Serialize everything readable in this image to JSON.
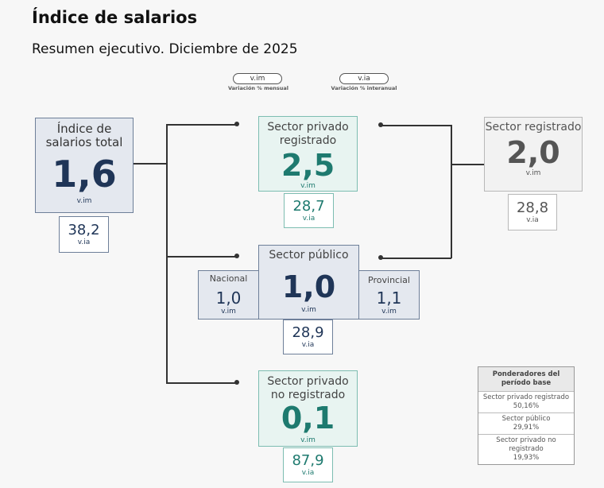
{
  "title": "Índice de salarios",
  "subtitle": "Resumen ejecutivo. Diciembre de 2025",
  "legend": {
    "vim_label": "v.im",
    "vim_caption": "Variación % mensual",
    "via_label": "v.ia",
    "via_caption": "Variación % interanual"
  },
  "total": {
    "label": "Índice de salarios total",
    "vim": "1,6",
    "vim_label": "v.im",
    "via": "38,2",
    "via_label": "v.ia"
  },
  "privado_registrado": {
    "label": "Sector privado registrado",
    "vim": "2,5",
    "vim_label": "v.im",
    "via": "28,7",
    "via_label": "v.ia"
  },
  "registrado": {
    "label": "Sector registrado",
    "vim": "2,0",
    "vim_label": "v.im",
    "via": "28,8",
    "via_label": "v.ia"
  },
  "publico": {
    "label": "Sector público",
    "vim": "1,0",
    "vim_label": "v.im",
    "via": "28,9",
    "via_label": "v.ia"
  },
  "nacional": {
    "label": "Nacional",
    "vim": "1,0",
    "vim_label": "v.im"
  },
  "provincial": {
    "label": "Provincial",
    "vim": "1,1",
    "vim_label": "v.im"
  },
  "no_registrado": {
    "label": "Sector privado no registrado",
    "vim": "0,1",
    "vim_label": "v.im",
    "via": "87,9",
    "via_label": "v.ia"
  },
  "weights": {
    "header": "Ponderadores del período base",
    "rows": [
      {
        "name": "Sector privado registrado",
        "value": "50,16%"
      },
      {
        "name": "Sector público",
        "value": "29,91%"
      },
      {
        "name": "Sector privado no registrado",
        "value": "19,93%"
      }
    ]
  },
  "colors": {
    "navy": "#1f3557",
    "teal": "#1e7a6f",
    "gray": "#555555"
  }
}
